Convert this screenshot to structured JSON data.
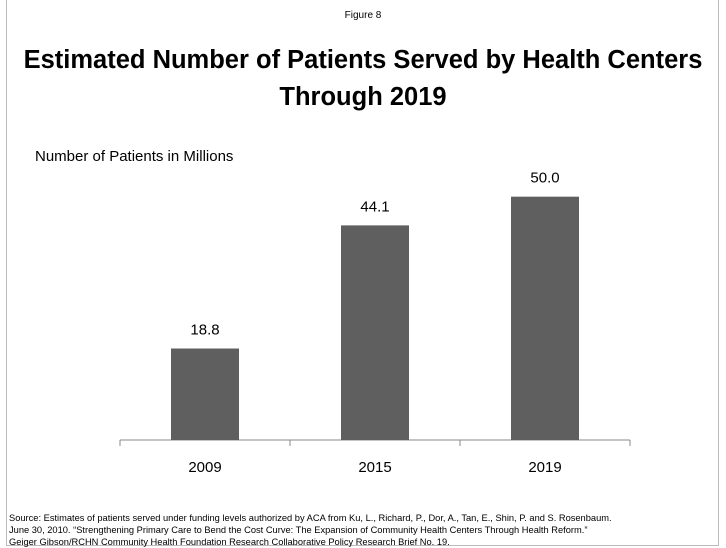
{
  "figure_label": "Figure 8",
  "chart_data": {
    "type": "bar",
    "title": "Estimated Number of Patients Served by Health Centers Through 2019",
    "ylabel": "Number of Patients in Millions",
    "categories": [
      "2009",
      "2015",
      "2019"
    ],
    "values": [
      18.8,
      44.1,
      50.0
    ],
    "value_labels": [
      "18.8",
      "44.1",
      "50.0"
    ],
    "color": "#5f5f5f",
    "ylim": [
      0,
      60
    ]
  },
  "source": [
    "Source:  Estimates of patients served under funding levels authorized by ACA from Ku, L., Richard, P., Dor, A., Tan, E., Shin, P. and S. Rosenbaum.",
    "June 30, 2010. “Strengthening Primary Care to Bend the Cost Curve: The Expansion of Community Health Centers Through Health Reform.”",
    "Geiger Gibson/RCHN Community Health Foundation Research Collaborative Policy Research Brief No. 19."
  ]
}
